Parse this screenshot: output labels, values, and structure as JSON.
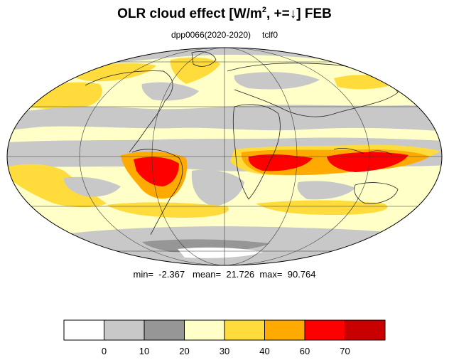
{
  "title": {
    "prefix": "OLR cloud effect [W/m",
    "superscript": "2",
    "suffix": ", +=↓]  FEB"
  },
  "subtitle": {
    "experiment": "dpp0066(2020-2020)",
    "variable": "tclf0"
  },
  "stats": {
    "min_label": "min=",
    "min": "-2.367",
    "mean_label": "mean=",
    "mean": "21.726",
    "max_label": "max=",
    "max": "90.764"
  },
  "projection": "mollweide",
  "colorbar": {
    "bins": [
      {
        "color": "#ffffff"
      },
      {
        "color": "#c8c8c8"
      },
      {
        "color": "#969696"
      },
      {
        "color": "#ffffc8"
      },
      {
        "color": "#ffdc3c"
      },
      {
        "color": "#ffaa00"
      },
      {
        "color": "#ff0000"
      },
      {
        "color": "#c80000"
      }
    ],
    "tick_labels": [
      "0",
      "10",
      "20",
      "30",
      "40",
      "60",
      "70"
    ]
  }
}
